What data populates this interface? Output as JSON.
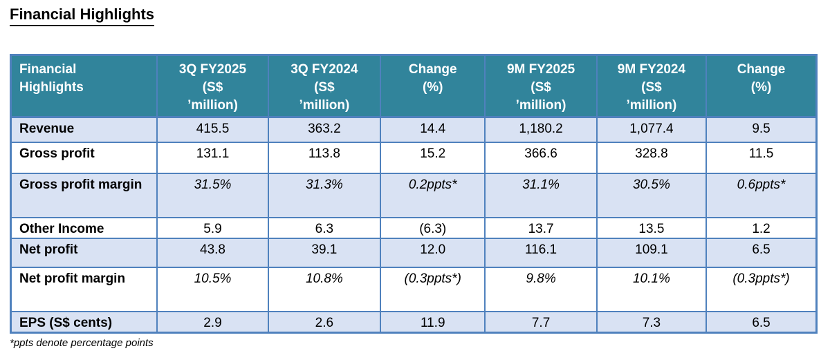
{
  "page": {
    "title": "Financial Highlights",
    "footnote": "*ppts denote percentage points"
  },
  "colors": {
    "header_bg": "#31849B",
    "header_text": "#FFFFFF",
    "row_shade": "#D9E2F3",
    "border": "#4F81BD",
    "text": "#000000"
  },
  "table": {
    "headers": [
      "Financial\nHighlights",
      "3Q FY2025\n(S$\n’million)",
      "3Q FY2024\n(S$\n’million)",
      "Change\n(%)",
      "9M FY2025\n(S$\n’million)",
      "9M FY2024\n(S$\n’million)",
      "Change\n(%)"
    ],
    "rows": [
      {
        "label": "Revenue",
        "values": [
          "415.5",
          "363.2",
          "14.4",
          "1,180.2",
          "1,077.4",
          "9.5"
        ]
      },
      {
        "label": "Gross profit",
        "values": [
          "131.1",
          "113.8",
          "15.2",
          "366.6",
          "328.8",
          "11.5"
        ]
      },
      {
        "label": "Gross profit margin",
        "values": [
          "31.5%",
          "31.3%",
          "0.2ppts*",
          "31.1%",
          "30.5%",
          "0.6ppts*"
        ]
      },
      {
        "label": "Other Income",
        "values": [
          "5.9",
          "6.3",
          "(6.3)",
          "13.7",
          "13.5",
          "1.2"
        ]
      },
      {
        "label": "Net profit",
        "values": [
          "43.8",
          "39.1",
          "12.0",
          "116.1",
          "109.1",
          "6.5"
        ]
      },
      {
        "label": "Net profit margin",
        "values": [
          "10.5%",
          "10.8%",
          "(0.3ppts*)",
          "9.8%",
          "10.1%",
          "(0.3ppts*)"
        ]
      },
      {
        "label": "EPS (S$ cents)",
        "values": [
          "2.9",
          "2.6",
          "11.9",
          "7.7",
          "7.3",
          "6.5"
        ]
      }
    ]
  }
}
